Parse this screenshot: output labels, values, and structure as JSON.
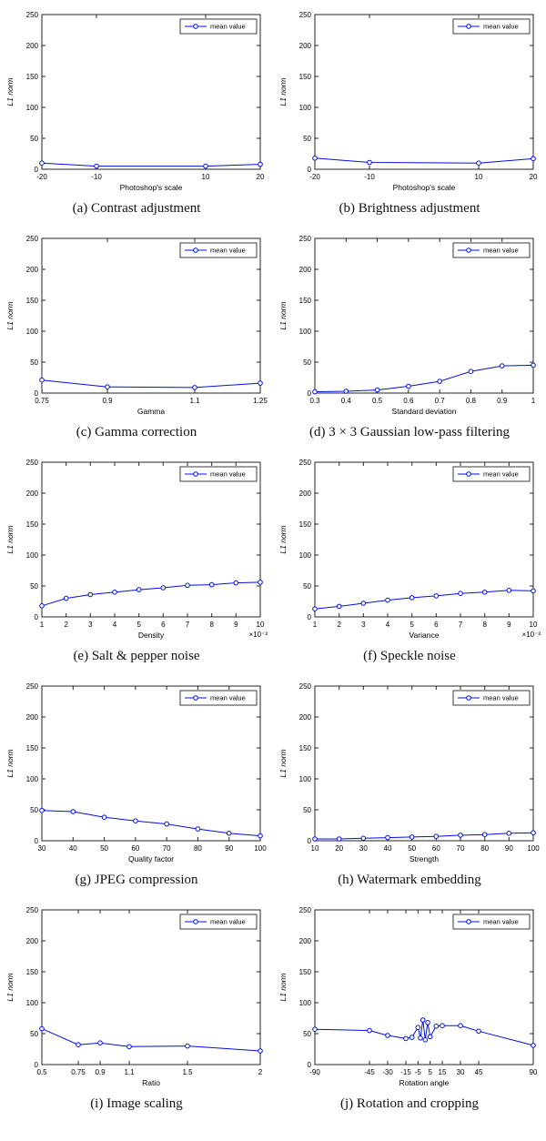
{
  "style": {
    "line_color": "#0010dd",
    "axis_color": "#262626",
    "text_color": "#000000",
    "background": "#ffffff"
  },
  "legend_label": "mean value",
  "chart_data": [
    {
      "id": "a",
      "type": "line",
      "caption": "(a) Contrast adjustment",
      "xlabel": "Photoshop's scale",
      "ylabel": "L1 norm",
      "legend": "mean value",
      "xlim": [
        -20,
        20
      ],
      "ylim": [
        0,
        250
      ],
      "xticks": [
        -20,
        -10,
        10,
        20
      ],
      "xtick_labels": [
        "-20",
        "-10",
        "10",
        "20"
      ],
      "yticks": [
        0,
        50,
        100,
        150,
        200,
        250
      ],
      "x": [
        -20,
        -10,
        10,
        20
      ],
      "values": [
        10,
        5,
        5,
        8
      ],
      "x_scale_note": ""
    },
    {
      "id": "b",
      "type": "line",
      "caption": "(b) Brightness adjustment",
      "xlabel": "Photoshop's scale",
      "ylabel": "L1 norm",
      "legend": "mean value",
      "xlim": [
        -20,
        20
      ],
      "ylim": [
        0,
        250
      ],
      "xticks": [
        -20,
        -10,
        10,
        20
      ],
      "xtick_labels": [
        "-20",
        "-10",
        "10",
        "20"
      ],
      "yticks": [
        0,
        50,
        100,
        150,
        200,
        250
      ],
      "x": [
        -20,
        -10,
        10,
        20
      ],
      "values": [
        18,
        11,
        10,
        17
      ],
      "x_scale_note": ""
    },
    {
      "id": "c",
      "type": "line",
      "caption": "(c) Gamma correction",
      "xlabel": "Gamma",
      "ylabel": "L1 norm",
      "legend": "mean value",
      "xlim": [
        0.75,
        1.25
      ],
      "ylim": [
        0,
        250
      ],
      "xticks": [
        0.75,
        0.9,
        1.1,
        1.25
      ],
      "xtick_labels": [
        "0.75",
        "0.9",
        "1.1",
        "1.25"
      ],
      "yticks": [
        0,
        50,
        100,
        150,
        200,
        250
      ],
      "x": [
        0.75,
        0.9,
        1.1,
        1.25
      ],
      "values": [
        21,
        10,
        9,
        16
      ],
      "x_scale_note": ""
    },
    {
      "id": "d",
      "type": "line",
      "caption": "(d) 3 × 3 Gaussian low-pass filtering",
      "xlabel": "Standard deviation",
      "ylabel": "L1 norm",
      "legend": "mean value",
      "xlim": [
        0.3,
        1
      ],
      "ylim": [
        0,
        250
      ],
      "xticks": [
        0.3,
        0.4,
        0.5,
        0.6,
        0.7,
        0.8,
        0.9,
        1
      ],
      "xtick_labels": [
        "0.3",
        "0.4",
        "0.5",
        "0.6",
        "0.7",
        "0.8",
        "0.9",
        "1"
      ],
      "yticks": [
        0,
        50,
        100,
        150,
        200,
        250
      ],
      "x": [
        0.3,
        0.4,
        0.5,
        0.6,
        0.7,
        0.8,
        0.9,
        1
      ],
      "values": [
        2,
        3,
        5,
        11,
        19,
        35,
        44,
        45
      ],
      "x_scale_note": ""
    },
    {
      "id": "e",
      "type": "line",
      "caption": "(e) Salt & pepper noise",
      "xlabel": "Density",
      "ylabel": "L1 norm",
      "legend": "mean value",
      "xlim": [
        1,
        10
      ],
      "ylim": [
        0,
        250
      ],
      "xticks": [
        1,
        2,
        3,
        4,
        5,
        6,
        7,
        8,
        9,
        10
      ],
      "xtick_labels": [
        "1",
        "2",
        "3",
        "4",
        "5",
        "6",
        "7",
        "8",
        "9",
        "10"
      ],
      "yticks": [
        0,
        50,
        100,
        150,
        200,
        250
      ],
      "x": [
        1,
        2,
        3,
        4,
        5,
        6,
        7,
        8,
        9,
        10
      ],
      "values": [
        18,
        30,
        36,
        40,
        44,
        47,
        51,
        52,
        55,
        56
      ],
      "x_scale_note": "×10⁻³"
    },
    {
      "id": "f",
      "type": "line",
      "caption": "(f) Speckle noise",
      "xlabel": "Variance",
      "ylabel": "L1 norm",
      "legend": "mean value",
      "xlim": [
        1,
        10
      ],
      "ylim": [
        0,
        250
      ],
      "xticks": [
        1,
        2,
        3,
        4,
        5,
        6,
        7,
        8,
        9,
        10
      ],
      "xtick_labels": [
        "1",
        "2",
        "3",
        "4",
        "5",
        "6",
        "7",
        "8",
        "9",
        "10"
      ],
      "yticks": [
        0,
        50,
        100,
        150,
        200,
        250
      ],
      "x": [
        1,
        2,
        3,
        4,
        5,
        6,
        7,
        8,
        9,
        10
      ],
      "values": [
        13,
        17,
        22,
        27,
        31,
        34,
        38,
        40,
        43,
        42
      ],
      "x_scale_note": "×10⁻³"
    },
    {
      "id": "g",
      "type": "line",
      "caption": "(g) JPEG compression",
      "xlabel": "Quality factor",
      "ylabel": "L1 norm",
      "legend": "mean value",
      "xlim": [
        30,
        100
      ],
      "ylim": [
        0,
        250
      ],
      "xticks": [
        30,
        40,
        50,
        60,
        70,
        80,
        90,
        100
      ],
      "xtick_labels": [
        "30",
        "40",
        "50",
        "60",
        "70",
        "80",
        "90",
        "100"
      ],
      "yticks": [
        0,
        50,
        100,
        150,
        200,
        250
      ],
      "x": [
        30,
        40,
        50,
        60,
        70,
        80,
        90,
        100
      ],
      "values": [
        49,
        47,
        38,
        32,
        27,
        19,
        12,
        8
      ],
      "x_scale_note": ""
    },
    {
      "id": "h",
      "type": "line",
      "caption": "(h) Watermark embedding",
      "xlabel": "Strength",
      "ylabel": "L1 norm",
      "legend": "mean value",
      "xlim": [
        10,
        100
      ],
      "ylim": [
        0,
        250
      ],
      "xticks": [
        10,
        20,
        30,
        40,
        50,
        60,
        70,
        80,
        90,
        100
      ],
      "xtick_labels": [
        "10",
        "20",
        "30",
        "40",
        "50",
        "60",
        "70",
        "80",
        "90",
        "100"
      ],
      "yticks": [
        0,
        50,
        100,
        150,
        200,
        250
      ],
      "x": [
        10,
        20,
        30,
        40,
        50,
        60,
        70,
        80,
        90,
        100
      ],
      "values": [
        3,
        3,
        4,
        5,
        6,
        7,
        9,
        10,
        12,
        13
      ],
      "x_scale_note": ""
    },
    {
      "id": "i",
      "type": "line",
      "caption": "(i) Image scaling",
      "xlabel": "Ratio",
      "ylabel": "L1 norm",
      "legend": "mean value",
      "xlim": [
        0.5,
        2
      ],
      "ylim": [
        0,
        250
      ],
      "xticks": [
        0.5,
        0.75,
        0.9,
        1.1,
        1.5,
        2
      ],
      "xtick_labels": [
        "0.5",
        "0.75",
        "0.9",
        "1.1",
        "1.5",
        "2"
      ],
      "yticks": [
        0,
        50,
        100,
        150,
        200,
        250
      ],
      "x": [
        0.5,
        0.75,
        0.9,
        1.1,
        1.5,
        2
      ],
      "values": [
        58,
        32,
        35,
        29,
        30,
        22
      ],
      "x_scale_note": ""
    },
    {
      "id": "j",
      "type": "line",
      "caption": "(j) Rotation and cropping",
      "xlabel": "Rotation angle",
      "ylabel": "L1 norm",
      "legend": "mean value",
      "xlim": [
        -90,
        90
      ],
      "ylim": [
        0,
        250
      ],
      "xticks": [
        -90,
        -45,
        -30,
        -15,
        -5,
        5,
        15,
        30,
        45,
        90
      ],
      "xtick_labels": [
        "-90",
        "-45",
        "-30",
        "-15",
        "-5",
        "5",
        "15",
        "30",
        "45",
        "90"
      ],
      "yticks": [
        0,
        50,
        100,
        150,
        200,
        250
      ],
      "x": [
        -90,
        -45,
        -30,
        -15,
        -10,
        -5,
        -3,
        -1,
        1,
        3,
        5,
        10,
        15,
        30,
        45,
        90
      ],
      "values": [
        57,
        55,
        47,
        42,
        44,
        60,
        43,
        72,
        40,
        68,
        45,
        62,
        63,
        63,
        54,
        31
      ],
      "x_scale_note": ""
    }
  ]
}
